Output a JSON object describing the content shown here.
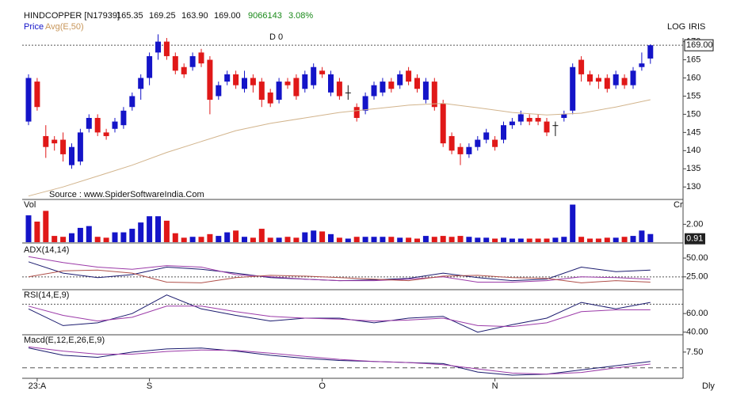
{
  "header": {
    "symbol": "HINDCOPPER [N17939]",
    "open": "165.35",
    "high": "169.25",
    "low": "163.90",
    "close": "169.00",
    "volume": "9066143",
    "change": "3.08%",
    "marker": "D 0",
    "scale_mode": "LOG",
    "tool": "IRIS",
    "source": "Source : www.SpiderSoftwareIndia.Com",
    "period": "Dly",
    "volume_unit": "Cr"
  },
  "chart_data": [
    {
      "type": "candlestick",
      "up_color": "#1414c8",
      "down_color": "#e01818",
      "categories": [
        null,
        null,
        null,
        null,
        null,
        null,
        null,
        null,
        null,
        null,
        null,
        null,
        null,
        null,
        null,
        null,
        null,
        null,
        null,
        null,
        null,
        null,
        null,
        null,
        null,
        null,
        null,
        null,
        null,
        null,
        null,
        null,
        null,
        null,
        null,
        null,
        null,
        null,
        null,
        null,
        null,
        null,
        null,
        null,
        null,
        null,
        null,
        null,
        null,
        null,
        null,
        null,
        null,
        null,
        null,
        null,
        null,
        null,
        null,
        null,
        null,
        null,
        null,
        null,
        null,
        null,
        null,
        null,
        null,
        null,
        null,
        null,
        null
      ],
      "series": [
        {
          "name": "Price",
          "color": "#1414c8",
          "open": [
            148,
            159,
            144,
            143,
            143,
            136,
            137,
            146,
            149,
            145,
            146,
            147,
            152,
            157,
            160,
            167,
            170,
            166,
            163,
            163,
            167,
            165,
            155,
            159,
            161,
            157,
            160,
            159,
            156,
            154,
            159,
            160,
            157,
            158,
            162,
            156,
            159,
            156,
            152,
            151,
            155,
            156,
            159,
            158,
            162,
            160,
            154,
            159,
            153,
            144,
            141,
            139,
            141,
            143,
            143,
            143,
            147,
            148,
            149,
            149,
            148,
            147,
            149,
            151,
            165,
            161,
            160,
            160,
            158,
            160,
            158,
            163,
            165.35
          ],
          "high": [
            161,
            160,
            147,
            144,
            145,
            142,
            146,
            150,
            150,
            146,
            149,
            152,
            156,
            161,
            167,
            172,
            171,
            167,
            164,
            167,
            168,
            166,
            159,
            162,
            162,
            162,
            161,
            160,
            157,
            160,
            160,
            161,
            162,
            164,
            163,
            162,
            160,
            158,
            153,
            156,
            159,
            160,
            160,
            162,
            163,
            161,
            160,
            160,
            154,
            145,
            142,
            142,
            144,
            146,
            144,
            148,
            149,
            151,
            150,
            150,
            149,
            148,
            151,
            164,
            166,
            162,
            161,
            161,
            162,
            161,
            163,
            167,
            169.25
          ],
          "low": [
            147,
            151,
            138,
            140,
            137,
            135,
            136,
            145,
            144,
            143,
            145,
            146,
            151,
            154,
            158,
            165,
            165,
            161,
            160,
            162,
            163,
            150,
            154,
            158,
            157,
            156,
            156,
            152,
            152,
            153,
            157,
            154,
            156,
            157,
            160,
            155,
            154,
            154,
            148,
            150,
            154,
            155,
            156,
            157,
            158,
            156,
            153,
            151,
            141,
            139,
            136,
            138,
            140,
            142,
            140,
            142,
            146,
            147,
            147,
            147,
            144,
            144,
            148,
            150,
            159,
            158,
            157,
            156,
            157,
            157,
            157,
            162,
            163.9
          ],
          "close": [
            160,
            152,
            141,
            142,
            139,
            141,
            145,
            149,
            145,
            144,
            148,
            151,
            155,
            160,
            166,
            170,
            166,
            162,
            161,
            166,
            164,
            154,
            158,
            161,
            158,
            160,
            158,
            154,
            153,
            159,
            158,
            155,
            161,
            163,
            161,
            161,
            155,
            156,
            149,
            155,
            158,
            159,
            157,
            161,
            159,
            157,
            159,
            152,
            142,
            140,
            139,
            141,
            143,
            145,
            141,
            147,
            148,
            150,
            148,
            148,
            145,
            147,
            150,
            163,
            161,
            159,
            159,
            157,
            161,
            158,
            162,
            164,
            169
          ]
        },
        {
          "name": "Avg(E,50)",
          "color": "#d2b48c",
          "x": [
            0,
            4,
            8,
            12,
            16,
            20,
            24,
            28,
            32,
            36,
            40,
            44,
            48,
            52,
            56,
            60,
            64,
            68,
            72
          ],
          "values": [
            127.5,
            130,
            133,
            136,
            139.5,
            142.5,
            145.5,
            147.5,
            149,
            150.5,
            151.5,
            152.5,
            153,
            151.8,
            150.5,
            149.8,
            150.3,
            152,
            154
          ]
        }
      ],
      "ylim": [
        127,
        171
      ],
      "yticks": [
        130,
        135,
        140,
        145,
        150,
        155,
        160,
        165,
        170
      ],
      "ref_line": 169,
      "log_scale": true,
      "xlim": [
        -1,
        73
      ],
      "xticks": [
        {
          "value": 1,
          "label": "23:A"
        },
        {
          "value": 14,
          "label": "S"
        },
        {
          "value": 34,
          "label": "O"
        },
        {
          "value": 54,
          "label": "N"
        }
      ]
    },
    {
      "type": "volume",
      "title": "Vol",
      "values": [
        3.0,
        2.3,
        3.5,
        0.7,
        0.6,
        1.0,
        1.6,
        1.8,
        0.6,
        0.5,
        1.1,
        1.1,
        1.5,
        2.2,
        2.9,
        2.9,
        2.4,
        1.0,
        0.5,
        0.6,
        0.6,
        0.9,
        0.7,
        1.1,
        1.3,
        0.6,
        0.5,
        1.5,
        0.5,
        0.5,
        0.6,
        0.5,
        1.1,
        1.3,
        1.2,
        0.9,
        0.5,
        0.4,
        0.6,
        0.6,
        0.6,
        0.6,
        0.6,
        0.5,
        0.5,
        0.4,
        0.7,
        0.6,
        0.7,
        0.6,
        0.7,
        0.6,
        0.5,
        0.5,
        0.4,
        0.5,
        0.4,
        0.4,
        0.4,
        0.4,
        0.4,
        0.5,
        0.6,
        4.2,
        0.6,
        0.4,
        0.4,
        0.5,
        0.5,
        0.6,
        0.7,
        1.3,
        0.91
      ],
      "ylim": [
        0,
        4.6
      ],
      "yticks": [
        {
          "value": 2,
          "label": "2.00"
        }
      ]
    },
    {
      "type": "line",
      "title": "ADX(14,14)",
      "x": [
        0,
        4,
        8,
        12,
        16,
        20,
        24,
        28,
        32,
        36,
        40,
        44,
        48,
        52,
        56,
        60,
        64,
        68,
        72
      ],
      "series": [
        {
          "color": "#1a1a6e",
          "values": [
            45,
            30,
            24,
            28,
            38,
            35,
            30,
            24,
            22,
            20,
            21,
            23,
            30,
            24,
            20,
            22,
            38,
            32,
            34
          ]
        },
        {
          "color": "#9b3aa8",
          "values": [
            52,
            44,
            38,
            35,
            40,
            38,
            28,
            25,
            22,
            20,
            20,
            22,
            25,
            18,
            18,
            20,
            25,
            24,
            22
          ]
        },
        {
          "color": "#b0504a",
          "values": [
            25,
            33,
            34,
            30,
            18,
            17,
            24,
            27,
            26,
            24,
            22,
            20,
            26,
            27,
            24,
            23,
            17,
            20,
            18
          ]
        }
      ],
      "ylim": [
        9,
        68
      ],
      "yticks": [
        {
          "value": 50,
          "label": "50.00"
        },
        {
          "value": 25,
          "label": "25.00"
        }
      ],
      "ref_line": 25
    },
    {
      "type": "line",
      "title": "RSI(14,E,9)",
      "x": [
        0,
        4,
        8,
        12,
        16,
        20,
        24,
        28,
        32,
        36,
        40,
        44,
        48,
        52,
        56,
        60,
        64,
        68,
        72
      ],
      "series": [
        {
          "color": "#1a1a6e",
          "values": [
            65,
            47,
            50,
            60,
            80,
            65,
            58,
            52,
            55,
            55,
            50,
            55,
            57,
            40,
            48,
            55,
            72,
            65,
            72
          ]
        },
        {
          "color": "#9b3aa8",
          "values": [
            68,
            58,
            52,
            56,
            68,
            68,
            62,
            57,
            55,
            54,
            52,
            53,
            55,
            47,
            46,
            50,
            62,
            64,
            64
          ]
        }
      ],
      "ylim": [
        38,
        84
      ],
      "yticks": [
        {
          "value": 60,
          "label": "60.00"
        },
        {
          "value": 40,
          "label": "40.00"
        }
      ],
      "ref_line": 70
    },
    {
      "type": "line",
      "title": "Macd(E,12,E,26,E,9)",
      "x": [
        0,
        4,
        8,
        12,
        16,
        20,
        24,
        28,
        32,
        36,
        40,
        44,
        48,
        52,
        56,
        60,
        64,
        68,
        72
      ],
      "series": [
        {
          "color": "#1a1a6e",
          "values": [
            9.5,
            6,
            5,
            7.5,
            9,
            9.4,
            8,
            6,
            4.5,
            3.5,
            3,
            2.5,
            2,
            -2,
            -3.5,
            -3,
            -1,
            1,
            3
          ]
        },
        {
          "color": "#9b3aa8",
          "values": [
            10,
            8,
            6.5,
            6.5,
            7.8,
            8.5,
            8.3,
            7,
            5.5,
            4,
            3,
            2.5,
            1.5,
            -0.5,
            -2.5,
            -3,
            -2.2,
            0,
            1.8
          ]
        }
      ],
      "ylim": [
        -5,
        15
      ],
      "yticks": [
        {
          "value": 7.5,
          "label": "7.50"
        }
      ],
      "ref_line": 0
    }
  ]
}
